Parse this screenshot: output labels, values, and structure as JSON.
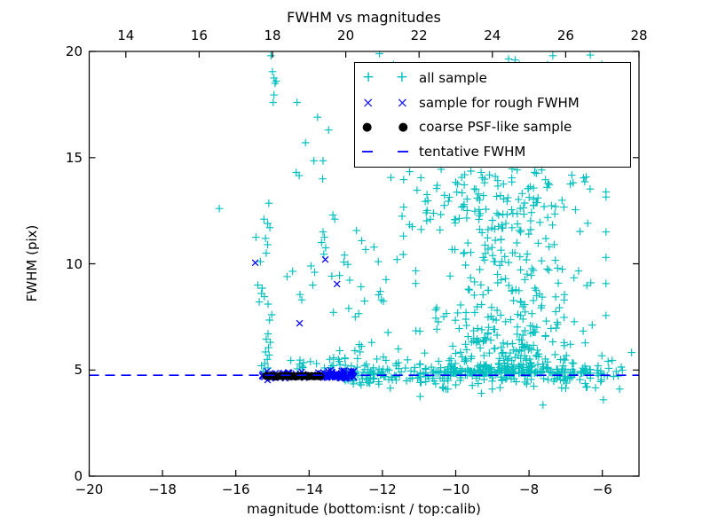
{
  "chart_data": {
    "type": "scatter",
    "title": "FWHM vs magnitudes",
    "xlabel": "magnitude (bottom:isnt / top:calib)",
    "ylabel": "FWHM (pix)",
    "xlim": [
      -20,
      -5
    ],
    "ylim": [
      0,
      20
    ],
    "top_axis_offset": 33,
    "grid": false,
    "x_ticks": {
      "values": [
        -20,
        -18,
        -16,
        -14,
        -12,
        -10,
        -8,
        -6
      ],
      "labels": [
        "−20",
        "−18",
        "−16",
        "−14",
        "−12",
        "−10",
        "−8",
        "−6"
      ]
    },
    "top_ticks": {
      "values": [
        14,
        16,
        18,
        20,
        22,
        24,
        26,
        28
      ],
      "labels": [
        "14",
        "16",
        "18",
        "20",
        "22",
        "24",
        "26",
        "28"
      ]
    },
    "y_ticks": {
      "values": [
        0,
        5,
        10,
        15,
        20
      ],
      "labels": [
        "0",
        "5",
        "10",
        "15",
        "20"
      ]
    },
    "tentative_fwhm": 4.75,
    "colors": {
      "all_sample": "#00bfbf",
      "rough_fwhm": "#0000ff",
      "psf_sample": "#000000",
      "tentative_line": "#0000ff"
    },
    "series": [
      {
        "name": "all sample",
        "marker": "plus",
        "color": "#00bfbf",
        "points": [
          [
            -15.04,
            19.8
          ],
          [
            -15.0,
            19.05
          ],
          [
            -14.96,
            18.75
          ],
          [
            -14.9,
            18.6
          ],
          [
            -14.93,
            18.5
          ],
          [
            -14.96,
            17.95
          ],
          [
            -14.98,
            17.6
          ],
          [
            -15.1,
            12.85
          ],
          [
            -15.23,
            12.1
          ],
          [
            -15.13,
            11.9
          ],
          [
            -15.07,
            11.7
          ],
          [
            -15.45,
            11.25
          ],
          [
            -15.19,
            11.2
          ],
          [
            -15.13,
            10.9
          ],
          [
            -15.17,
            10.5
          ],
          [
            -15.33,
            10.1
          ],
          [
            -15.4,
            9.0
          ],
          [
            -15.28,
            8.85
          ],
          [
            -15.3,
            8.6
          ],
          [
            -15.22,
            8.45
          ],
          [
            -15.36,
            8.2
          ],
          [
            -15.12,
            8.1
          ],
          [
            -15.02,
            7.6
          ],
          [
            -15.08,
            7.35
          ],
          [
            -15.12,
            6.7
          ],
          [
            -15.17,
            6.45
          ],
          [
            -15.06,
            6.3
          ],
          [
            -15.11,
            6.05
          ],
          [
            -15.19,
            5.85
          ],
          [
            -15.09,
            5.7
          ],
          [
            -15.14,
            5.5
          ],
          [
            -15.21,
            5.3
          ],
          [
            -15.12,
            5.1
          ],
          [
            -15.3,
            5.2
          ],
          [
            -15.25,
            4.95
          ],
          [
            -14.33,
            17.6
          ],
          [
            -13.77,
            16.9
          ],
          [
            -13.47,
            16.3
          ],
          [
            -14.1,
            15.7
          ],
          [
            -13.87,
            14.85
          ],
          [
            -13.62,
            14.85
          ],
          [
            -14.35,
            14.3
          ],
          [
            -14.27,
            14.15
          ],
          [
            -13.63,
            14.0
          ],
          [
            -16.45,
            12.6
          ],
          [
            -13.62,
            11.5
          ],
          [
            -13.58,
            11.25
          ],
          [
            -13.66,
            11.0
          ],
          [
            -13.55,
            10.75
          ],
          [
            -13.6,
            10.45
          ],
          [
            -13.95,
            9.9
          ],
          [
            -13.85,
            9.6
          ],
          [
            -14.45,
            9.65
          ],
          [
            -14.6,
            9.4
          ],
          [
            -13.9,
            9.0
          ],
          [
            -14.25,
            8.55
          ],
          [
            -14.2,
            8.3
          ],
          [
            -12.92,
            7.9
          ],
          [
            -12.74,
            7.5
          ],
          [
            -12.06,
            8.7
          ],
          [
            -12.03,
            8.3
          ],
          [
            -11.6,
            10.2
          ],
          [
            -13.35,
            12.3
          ],
          [
            -13.3,
            12.1
          ],
          [
            -14.15,
            5.35
          ],
          [
            -13.8,
            5.3
          ],
          [
            -14.5,
            5.45
          ],
          [
            -13.2,
            5.5
          ],
          [
            -12.58,
            4.3
          ],
          [
            -7.35,
            19.8
          ],
          [
            -8.56,
            19.65
          ],
          [
            -8.38,
            19.6
          ],
          [
            -10.97,
            3.75
          ],
          [
            -7.62,
            3.35
          ],
          [
            -7.0,
            4.14
          ],
          [
            -5.97,
            3.6
          ],
          [
            -5.2,
            5.82
          ],
          [
            -9.3,
            3.9
          ]
        ],
        "clusters": [
          {
            "n": 250,
            "x": [
              "pow",
              -13.05,
              -5.45,
              1.15
            ],
            "y": [
              "normal",
              4.78,
              0.28,
              4.1,
              5.6
            ]
          },
          {
            "n": 500,
            "x": [
              "normal",
              -8.55,
              1.15,
              -11.9,
              -5.9
            ],
            "y": [
              "pow",
              4.85,
              15.3,
              3.0
            ]
          },
          {
            "n": 80,
            "x": [
              "normal",
              -9.2,
              1.3,
              -11.9,
              -6.4
            ],
            "y": [
              "uniform",
              11.5,
              14.7
            ]
          },
          {
            "n": 55,
            "x": [
              "uniform",
              -12.6,
              -5.6
            ],
            "y": [
              "uniform",
              14.8,
              19.9
            ]
          },
          {
            "n": 30,
            "x": [
              "uniform",
              -13.4,
              -11.9
            ],
            "y": [
              "pow",
              5.1,
              11.6,
              1.6
            ]
          },
          {
            "n": 12,
            "x": [
              "uniform",
              -14.6,
              -13.0
            ],
            "y": [
              "uniform",
              5.05,
              5.6
            ]
          }
        ]
      },
      {
        "name": "sample for rough FWHM",
        "marker": "x",
        "color": "#0000ff",
        "points": [
          [
            -15.47,
            10.05
          ],
          [
            -14.26,
            7.2
          ],
          [
            -13.56,
            10.2
          ],
          [
            -13.24,
            9.05
          ],
          [
            -15.28,
            4.74
          ]
        ],
        "clusters": [
          {
            "n": 45,
            "x": [
              "uniform",
              -15.28,
              -13.66
            ],
            "y": [
              "normal",
              4.76,
              0.09,
              4.5,
              5.05
            ]
          },
          {
            "n": 70,
            "x": [
              "uniform",
              -13.66,
              -12.76
            ],
            "y": [
              "normal",
              4.77,
              0.1,
              4.5,
              5.05
            ]
          }
        ]
      },
      {
        "name": "coarse PSF-like sample",
        "marker": "dot",
        "color": "#000000",
        "points": [
          [
            -15.17,
            4.72
          ],
          [
            -15.08,
            4.7
          ],
          [
            -14.99,
            4.73
          ],
          [
            -14.9,
            4.69
          ],
          [
            -14.81,
            4.72
          ],
          [
            -14.72,
            4.7
          ],
          [
            -14.63,
            4.73
          ],
          [
            -14.54,
            4.7
          ],
          [
            -14.46,
            4.72
          ],
          [
            -14.37,
            4.69
          ],
          [
            -14.28,
            4.72
          ],
          [
            -14.19,
            4.7
          ],
          [
            -14.1,
            4.73
          ],
          [
            -14.01,
            4.7
          ],
          [
            -13.93,
            4.72
          ],
          [
            -13.85,
            4.7
          ],
          [
            -13.77,
            4.72
          ],
          [
            -13.7,
            4.71
          ]
        ],
        "clusters": []
      },
      {
        "name": "tentative FWHM",
        "marker": "hline",
        "color": "#0000ff",
        "y": 4.75
      }
    ],
    "legend": {
      "position": "upper right",
      "items": [
        {
          "label": "all sample",
          "marker": "plus",
          "color": "#00bfbf"
        },
        {
          "label": "sample for rough FWHM",
          "marker": "x",
          "color": "#0000ff"
        },
        {
          "label": "coarse PSF-like sample",
          "marker": "dot",
          "color": "#000000"
        },
        {
          "label": "tentative FWHM",
          "marker": "dash",
          "color": "#0000ff"
        }
      ]
    }
  }
}
